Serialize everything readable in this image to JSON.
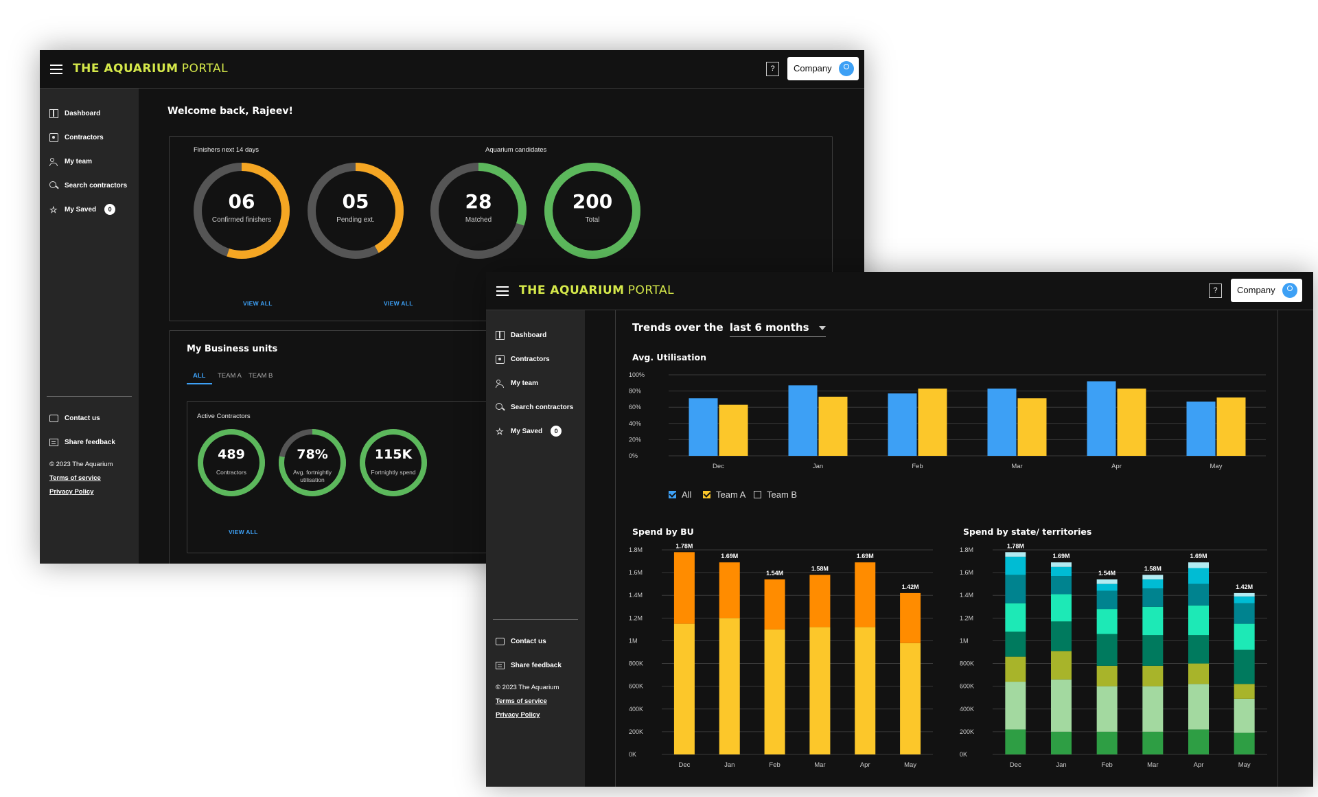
{
  "app": {
    "brand_main": "THE AQUARIUM",
    "brand_sub": "PORTAL",
    "help_label": "?",
    "company_label": "Company"
  },
  "sidebar": {
    "items": [
      {
        "label": "Dashboard",
        "icon": "dashboard-icon"
      },
      {
        "label": "Contractors",
        "icon": "contractors-icon"
      },
      {
        "label": "My team",
        "icon": "team-icon"
      },
      {
        "label": "Search contractors",
        "icon": "search-icon"
      },
      {
        "label": "My Saved",
        "icon": "star-icon",
        "badge": "0"
      }
    ],
    "footer_items": [
      {
        "label": "Contact us",
        "icon": "chat-icon"
      },
      {
        "label": "Share feedback",
        "icon": "feedback-icon"
      }
    ],
    "copyright": "© 2023 The Aquarium",
    "terms": "Terms of service",
    "privacy": "Privacy Policy"
  },
  "dashboard": {
    "welcome": "Welcome back, Rajeev!",
    "finishers_label": "Finishers next 14 days",
    "candidates_label": "Aquarium candidates",
    "view_all": "VIEW ALL",
    "rings": [
      {
        "value": "06",
        "label": "Confirmed finishers",
        "fraction": 0.55,
        "color": "#f5a623"
      },
      {
        "value": "05",
        "label": "Pending ext.",
        "fraction": 0.42,
        "color": "#f5a623"
      },
      {
        "value": "28",
        "label": "Matched",
        "fraction": 0.3,
        "color": "#5cb85c"
      },
      {
        "value": "200",
        "label": "Total",
        "fraction": 1.0,
        "color": "#5cb85c"
      }
    ],
    "business_title": "My Business units",
    "tabs": [
      {
        "label": "ALL",
        "active": true
      },
      {
        "label": "TEAM A",
        "active": false
      },
      {
        "label": "TEAM B",
        "active": false
      }
    ],
    "active_label": "Active Contractors",
    "active_rings": [
      {
        "value": "489",
        "label": "Contractors",
        "fraction": 1.0,
        "color": "#5cb85c"
      },
      {
        "value": "78%",
        "label": "Avg. fortnightly utilisation",
        "fraction": 0.78,
        "color": "#5cb85c"
      },
      {
        "value": "115K",
        "label": "Fortnightly spend",
        "fraction": 1.0,
        "color": "#5cb85c"
      }
    ]
  },
  "trends": {
    "title_prefix": "Trends over the",
    "title_selected": "last 6 months",
    "utilisation_title": "Avg. Utilisation",
    "spend_bu_title": "Spend by BU",
    "spend_state_title": "Spend by state/ territories",
    "legend": [
      {
        "label": "All",
        "checked": true,
        "color": "#3da0f5"
      },
      {
        "label": "Team A",
        "checked": true,
        "color": "#fcc72a"
      },
      {
        "label": "Team B",
        "checked": false,
        "color": "#cccccc"
      }
    ]
  },
  "chart_data": [
    {
      "type": "bar",
      "title": "Avg. Utilisation",
      "categories": [
        "Dec",
        "Jan",
        "Feb",
        "Mar",
        "Apr",
        "May"
      ],
      "y_ticks": [
        "100%",
        "80%",
        "60%",
        "40%",
        "20%",
        "0%"
      ],
      "ylim": [
        0,
        100
      ],
      "series": [
        {
          "name": "All",
          "color": "#3da0f5",
          "values": [
            71,
            87,
            77,
            83,
            92,
            67
          ]
        },
        {
          "name": "Team A",
          "color": "#fcc72a",
          "values": [
            63,
            73,
            83,
            71,
            83,
            72
          ]
        }
      ],
      "grid": true
    },
    {
      "type": "bar",
      "title": "Spend by BU",
      "categories": [
        "Dec",
        "Jan",
        "Feb",
        "Mar",
        "Apr",
        "May"
      ],
      "y_ticks": [
        "1.8M",
        "1.6M",
        "1.4M",
        "1.2M",
        "1M",
        "800K",
        "600K",
        "400K",
        "200K",
        "0K"
      ],
      "ylim": [
        0,
        1.8
      ],
      "totals": [
        1.78,
        1.69,
        1.54,
        1.58,
        1.69,
        1.42
      ],
      "total_labels": [
        "1.78M",
        "1.69M",
        "1.54M",
        "1.58M",
        "1.69M",
        "1.42M"
      ],
      "stacks": [
        {
          "color": "#fcc72a",
          "values": [
            1.15,
            1.2,
            1.1,
            1.12,
            1.12,
            0.98
          ]
        },
        {
          "color": "#ff8c00",
          "values": [
            0.63,
            0.49,
            0.44,
            0.46,
            0.57,
            0.44
          ]
        }
      ]
    },
    {
      "type": "bar",
      "title": "Spend by state/ territories",
      "categories": [
        "Dec",
        "Jan",
        "Feb",
        "Mar",
        "Apr",
        "May"
      ],
      "y_ticks": [
        "1.8M",
        "1.6M",
        "1.4M",
        "1.2M",
        "1M",
        "800K",
        "600K",
        "400K",
        "200K",
        "0K"
      ],
      "ylim": [
        0,
        1.8
      ],
      "totals": [
        1.78,
        1.69,
        1.54,
        1.58,
        1.69,
        1.42
      ],
      "total_labels": [
        "1.78M",
        "1.69M",
        "1.54M",
        "1.58M",
        "1.69M",
        "1.42M"
      ],
      "stacks": [
        {
          "color": "#2e9e44",
          "values": [
            0.22,
            0.2,
            0.2,
            0.2,
            0.22,
            0.19
          ]
        },
        {
          "color": "#a3d9a0",
          "values": [
            0.42,
            0.46,
            0.4,
            0.4,
            0.4,
            0.3
          ]
        },
        {
          "color": "#a8b42a",
          "values": [
            0.22,
            0.25,
            0.18,
            0.18,
            0.18,
            0.13
          ]
        },
        {
          "color": "#007a5e",
          "values": [
            0.22,
            0.26,
            0.28,
            0.27,
            0.25,
            0.3
          ]
        },
        {
          "color": "#1de9b6",
          "values": [
            0.25,
            0.24,
            0.22,
            0.25,
            0.26,
            0.23
          ]
        },
        {
          "color": "#00838f",
          "values": [
            0.25,
            0.16,
            0.16,
            0.16,
            0.19,
            0.18
          ]
        },
        {
          "color": "#00bcd4",
          "values": [
            0.16,
            0.08,
            0.06,
            0.08,
            0.14,
            0.06
          ]
        },
        {
          "color": "#b2ebf2",
          "values": [
            0.04,
            0.04,
            0.04,
            0.04,
            0.05,
            0.03
          ]
        }
      ]
    }
  ]
}
